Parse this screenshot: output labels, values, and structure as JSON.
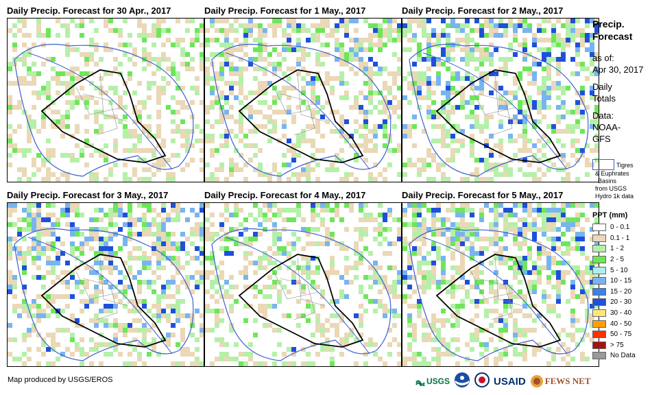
{
  "panels": [
    {
      "title": "Daily Precip. Forecast for 30 Apr., 2017"
    },
    {
      "title": "Daily Precip. Forecast for 1 May., 2017"
    },
    {
      "title": "Daily Precip. Forecast for 2 May., 2017"
    },
    {
      "title": "Daily Precip. Forecast for 3 May., 2017"
    },
    {
      "title": "Daily Precip. Forecast for 4 May., 2017"
    },
    {
      "title": "Daily Precip. Forecast for 5 May., 2017"
    }
  ],
  "sidebar": {
    "title_line1": "Precip.",
    "title_line2": "Forecast",
    "asof_label": "as of:",
    "asof_date": "Apr 30, 2017",
    "totals_line1": "Daily",
    "totals_line2": "Totals",
    "data_label": "Data:",
    "data_line1": "NOAA-",
    "data_line2": "GFS"
  },
  "basin_legend": {
    "line1": "Tigres",
    "line2": "& Euphrates",
    "line3": "Basins",
    "line4": "from USGS",
    "line5": "Hydro 1k data",
    "color": "#3a5fcd"
  },
  "ppt_legend": {
    "title": "PPT (mm)",
    "classes": [
      {
        "label": "0 - 0.1",
        "color": "#ffffff"
      },
      {
        "label": "0.1 - 1",
        "color": "#ead8b6"
      },
      {
        "label": "1 - 2",
        "color": "#b5f0a9"
      },
      {
        "label": "2 - 5",
        "color": "#6ee65a"
      },
      {
        "label": "5 - 10",
        "color": "#aeeeee"
      },
      {
        "label": "10 - 15",
        "color": "#78b4f0"
      },
      {
        "label": "15 - 20",
        "color": "#3c82e6"
      },
      {
        "label": "20 - 30",
        "color": "#1e50dc"
      },
      {
        "label": "30 - 40",
        "color": "#ffe678"
      },
      {
        "label": "40 - 50",
        "color": "#ffa000"
      },
      {
        "label": "50 - 75",
        "color": "#ff3200"
      },
      {
        "label": "> 75",
        "color": "#a01414"
      },
      {
        "label": "No Data",
        "color": "#999999"
      }
    ]
  },
  "credit": "Map produced by USGS/EROS",
  "logos": {
    "usgs": "USGS",
    "usaid": "USAID",
    "fews": "FEWS NET"
  }
}
